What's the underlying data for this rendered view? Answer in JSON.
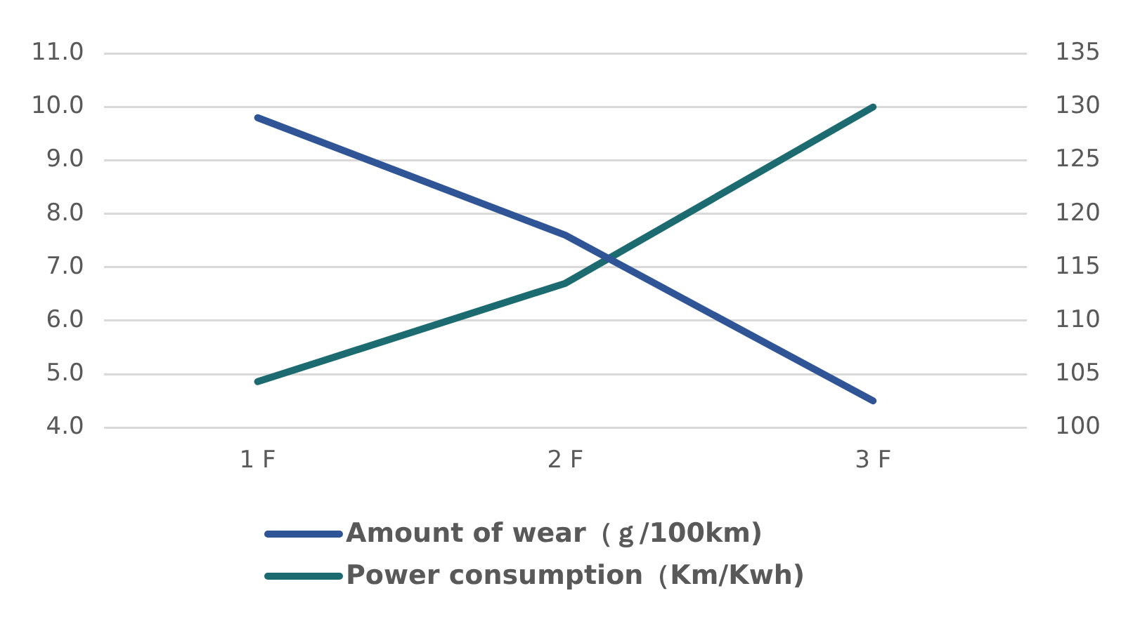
{
  "chart_data": {
    "type": "line",
    "categories": [
      "1 F",
      "2 F",
      "3 F"
    ],
    "series": [
      {
        "name": "Amount of wear（ｇ/100km)",
        "color": "#2f5597",
        "values": [
          9.8,
          7.6,
          4.5
        ]
      },
      {
        "name": "Power consumption（Km/Kwh)",
        "color": "#1b6b70",
        "values": [
          104.3,
          113.5,
          130
        ],
        "axis": "y2"
      }
    ],
    "ylim": [
      4,
      11
    ],
    "yticks": [
      {
        "value": 4,
        "label": "4.0"
      },
      {
        "value": 5,
        "label": "5.0"
      },
      {
        "value": 6,
        "label": "6.0"
      },
      {
        "value": 7,
        "label": "7.0"
      },
      {
        "value": 8,
        "label": "8.0"
      },
      {
        "value": 9,
        "label": "9.0"
      },
      {
        "value": 10,
        "label": "10.0"
      },
      {
        "value": 11,
        "label": "11.0"
      }
    ],
    "y2lim": [
      100,
      135
    ],
    "y2ticks": [
      100,
      105,
      110,
      115,
      120,
      125,
      130,
      135
    ],
    "grid": "y",
    "legend": "bottom",
    "marker": "none",
    "line_style": "solid"
  }
}
